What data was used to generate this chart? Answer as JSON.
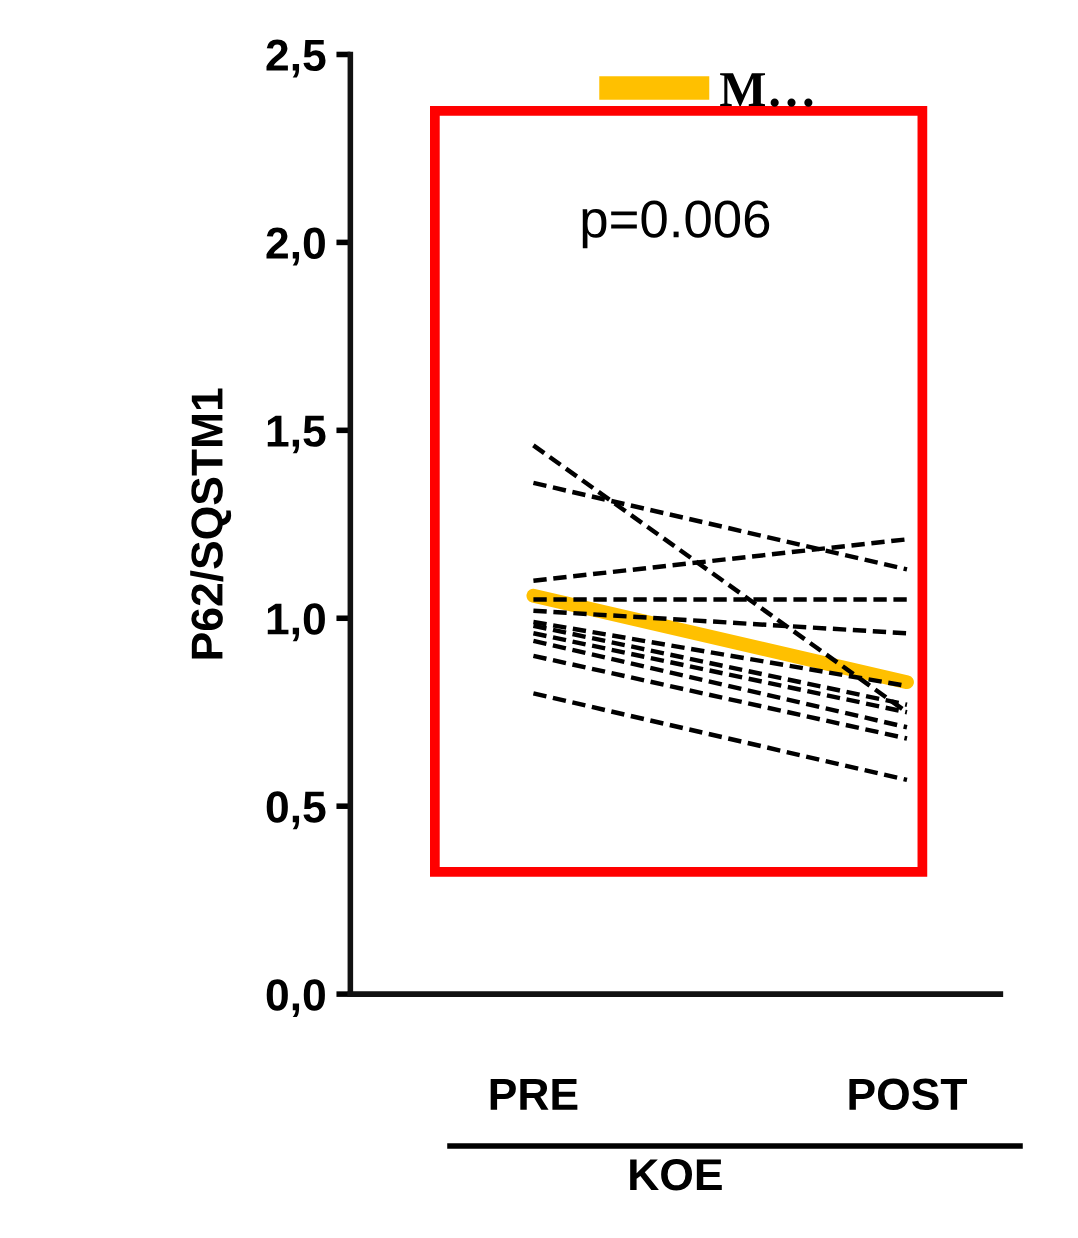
{
  "chart_data": {
    "type": "line",
    "ylabel": "P62/SQSTM1",
    "xlabel": "KOE",
    "categories": [
      "PRE",
      "POST"
    ],
    "ylim": [
      0,
      2.5
    ],
    "yticks": [
      {
        "value": 0,
        "label": "0,0"
      },
      {
        "value": 0.5,
        "label": "0,5"
      },
      {
        "value": 1.0,
        "label": "1,0"
      },
      {
        "value": 1.5,
        "label": "1,5"
      },
      {
        "value": 2.0,
        "label": "2,0"
      },
      {
        "value": 2.5,
        "label": "2,5"
      }
    ],
    "grid": false,
    "legend": "top",
    "marker": "none",
    "annotations": [
      "p=0.006"
    ],
    "series": [
      {
        "color": "#000000",
        "line_style": "dashed",
        "values": [
          1.46,
          0.75
        ]
      },
      {
        "color": "#000000",
        "line_style": "dashed",
        "values": [
          1.36,
          1.13
        ]
      },
      {
        "color": "#000000",
        "line_style": "dashed",
        "values": [
          1.1,
          1.21
        ]
      },
      {
        "color": "#000000",
        "line_style": "dashed",
        "values": [
          1.05,
          1.05
        ]
      },
      {
        "color": "#000000",
        "line_style": "dashed",
        "values": [
          1.02,
          0.96
        ]
      },
      {
        "color": "#000000",
        "line_style": "dashed",
        "values": [
          0.99,
          0.82
        ]
      },
      {
        "color": "#000000",
        "line_style": "dashed",
        "values": [
          0.98,
          0.77
        ]
      },
      {
        "color": "#000000",
        "line_style": "dashed",
        "values": [
          0.96,
          0.75
        ]
      },
      {
        "color": "#000000",
        "line_style": "dashed",
        "values": [
          0.94,
          0.71
        ]
      },
      {
        "color": "#000000",
        "line_style": "dashed",
        "values": [
          0.9,
          0.68
        ]
      },
      {
        "color": "#000000",
        "line_style": "dashed",
        "values": [
          0.8,
          0.57
        ]
      },
      {
        "name": "M…",
        "color": "#ffc000",
        "line_style": "solid",
        "values": [
          1.06,
          0.83
        ]
      }
    ]
  }
}
